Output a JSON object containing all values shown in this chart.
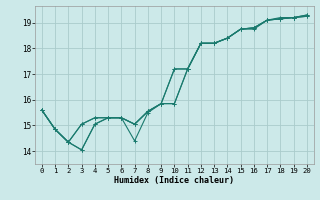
{
  "xlabel": "Humidex (Indice chaleur)",
  "xlim": [
    -0.5,
    20.5
  ],
  "ylim": [
    13.5,
    19.65
  ],
  "yticks": [
    14,
    15,
    16,
    17,
    18,
    19
  ],
  "xticks": [
    0,
    1,
    2,
    3,
    4,
    5,
    6,
    7,
    8,
    9,
    10,
    11,
    12,
    13,
    14,
    15,
    16,
    17,
    18,
    19,
    20
  ],
  "bg_color": "#cce9e9",
  "grid_color": "#aacccc",
  "line_color": "#1a7a6e",
  "lines": [
    [
      15.6,
      14.85,
      14.35,
      14.05,
      15.05,
      15.3,
      15.3,
      14.4,
      15.5,
      15.85,
      15.85,
      17.2,
      18.2,
      18.2,
      18.4,
      18.75,
      18.75,
      19.1,
      19.2,
      19.2,
      19.3
    ],
    [
      15.6,
      14.85,
      14.35,
      15.05,
      15.3,
      15.3,
      15.3,
      15.05,
      15.55,
      15.85,
      17.2,
      17.2,
      18.2,
      18.2,
      18.4,
      18.75,
      18.8,
      19.1,
      19.15,
      19.2,
      19.3
    ],
    [
      15.6,
      14.85,
      14.35,
      14.05,
      15.05,
      15.3,
      15.3,
      15.05,
      15.55,
      15.85,
      15.85,
      17.2,
      18.2,
      18.2,
      18.4,
      18.75,
      18.8,
      19.1,
      19.15,
      19.2,
      19.25
    ],
    [
      15.6,
      14.85,
      14.35,
      15.05,
      15.3,
      15.3,
      15.3,
      15.05,
      15.55,
      15.85,
      17.2,
      17.2,
      18.2,
      18.2,
      18.4,
      18.75,
      18.8,
      19.1,
      19.15,
      19.2,
      19.25
    ]
  ]
}
